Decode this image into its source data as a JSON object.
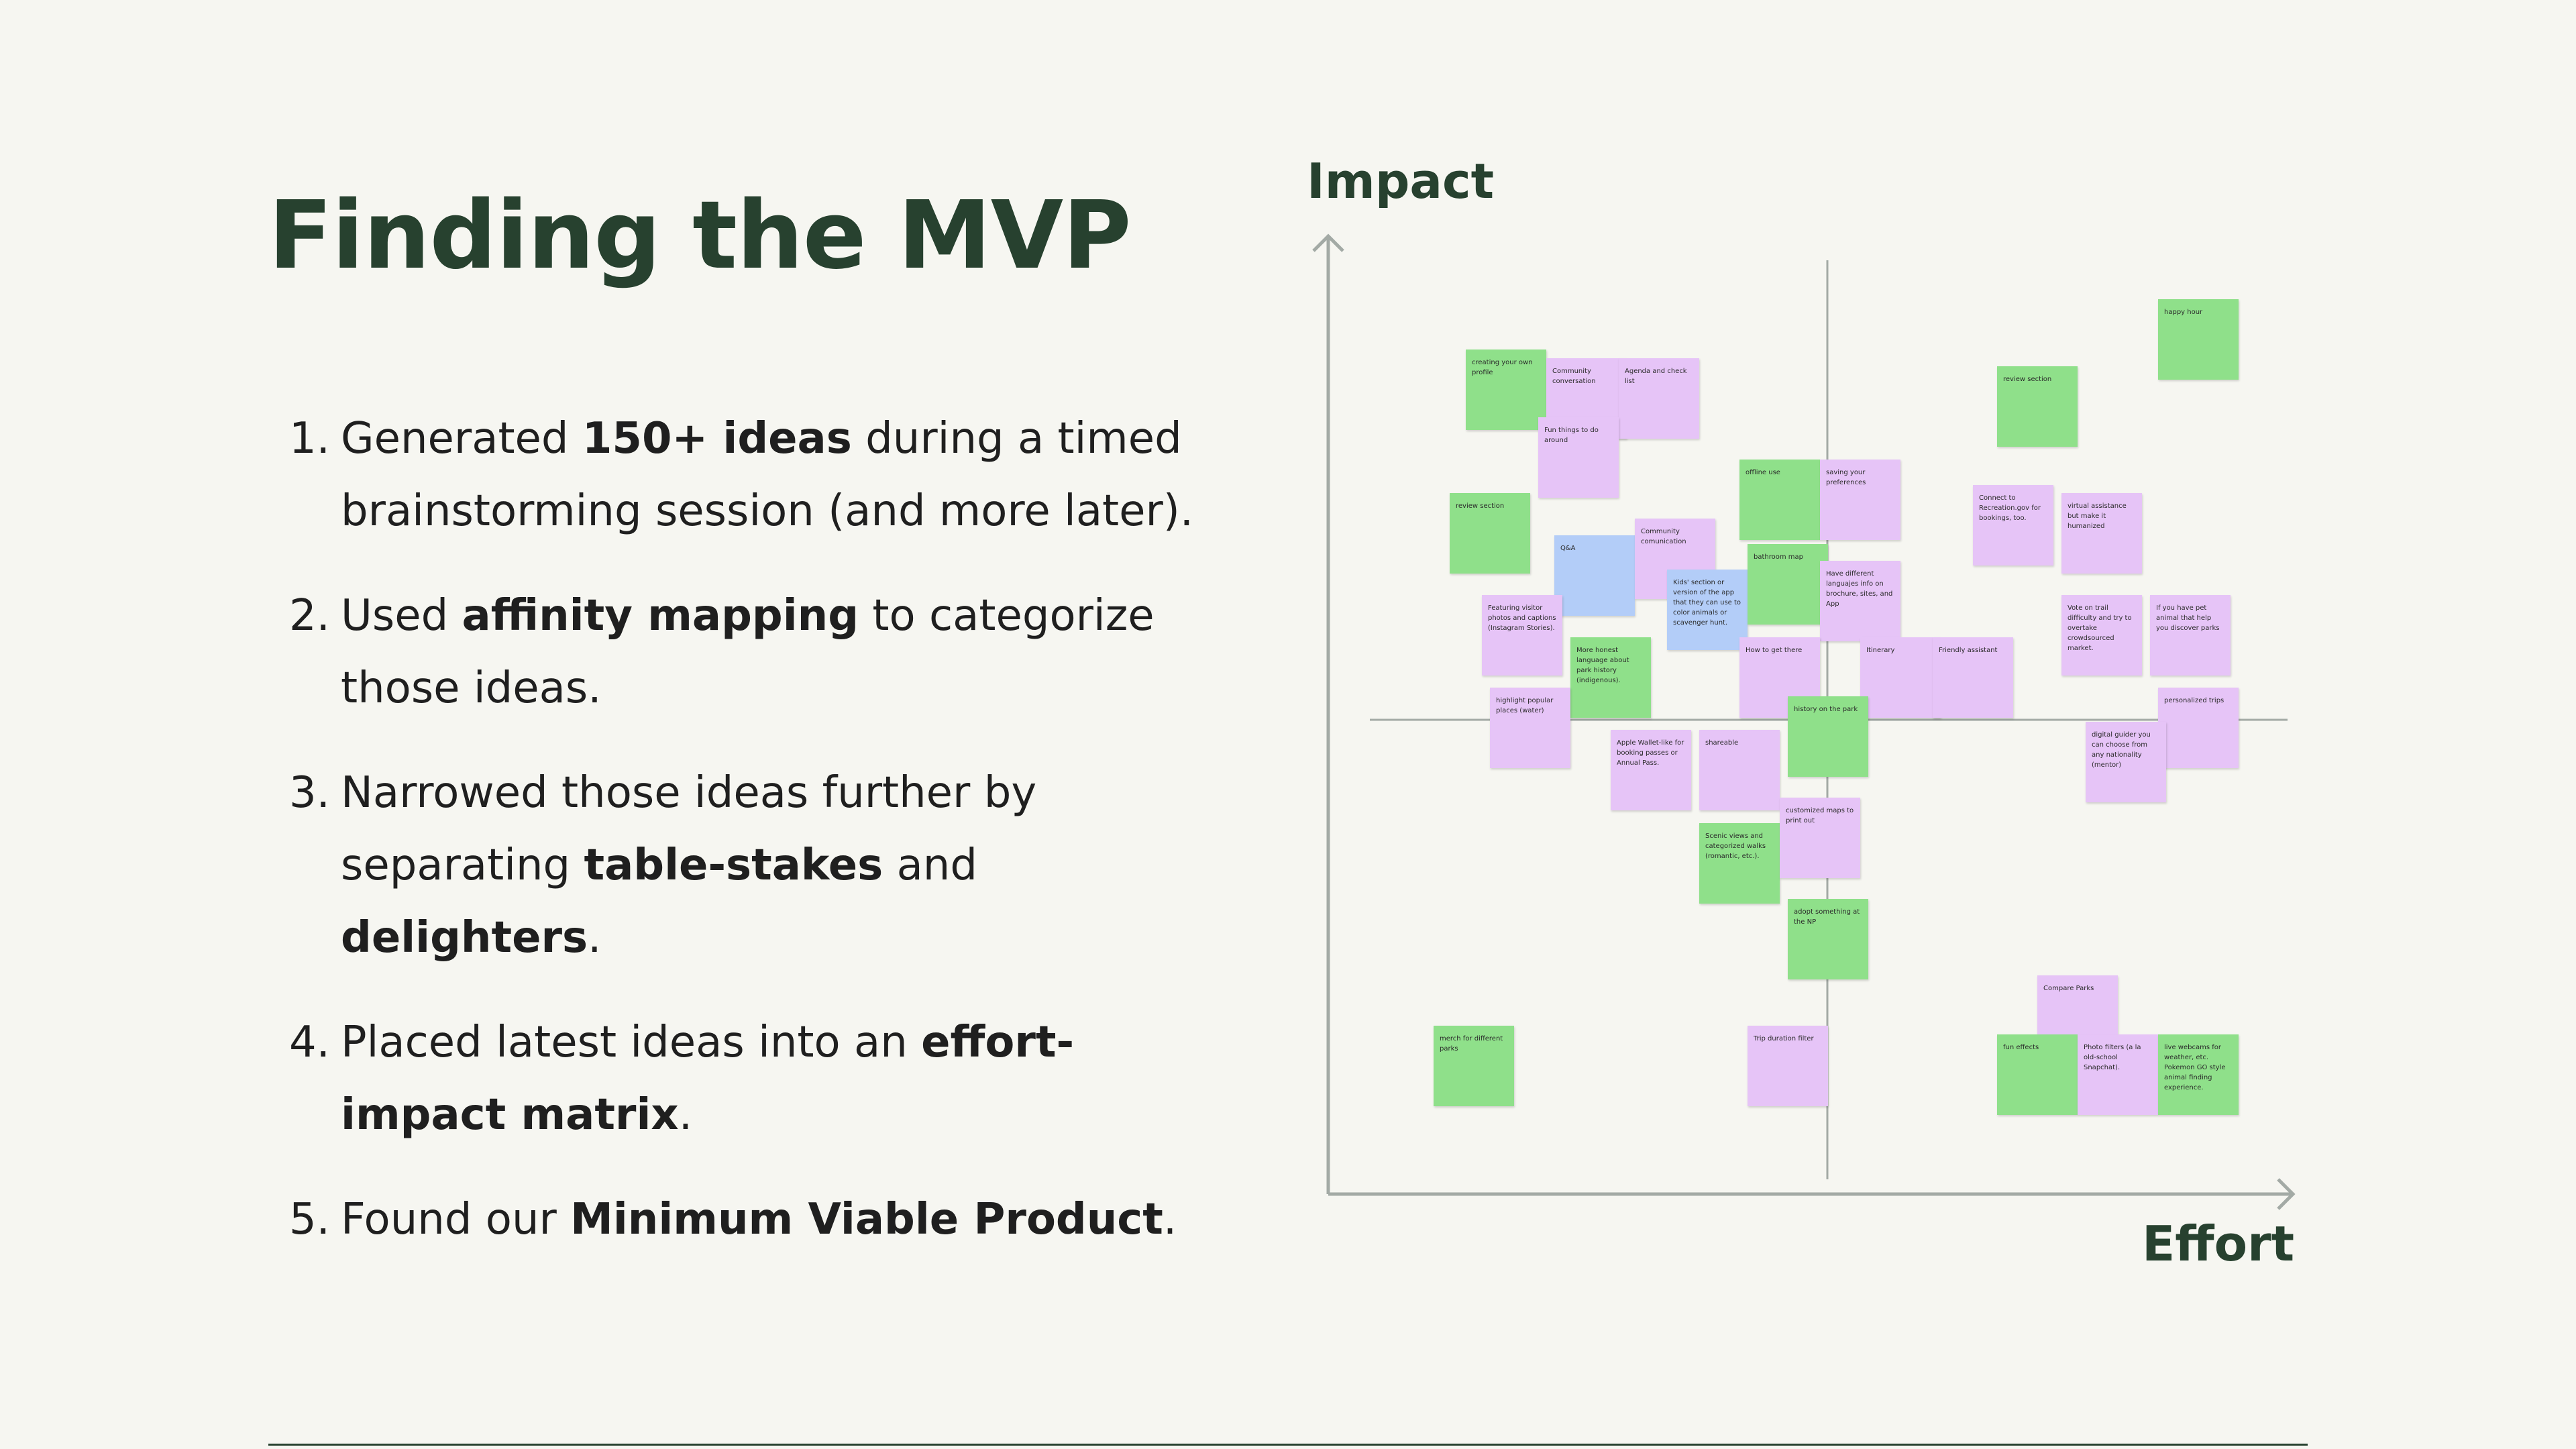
{
  "slide": {
    "title": "Finding the MVP",
    "points": [
      {
        "num": "1.",
        "parts": [
          {
            "t": "Generated "
          },
          {
            "t": "150+ ideas",
            "b": true
          },
          {
            "t": " during a timed brainstorming session (and more later)."
          }
        ]
      },
      {
        "num": "2.",
        "parts": [
          {
            "t": "Used "
          },
          {
            "t": "affinity mapping",
            "b": true
          },
          {
            "t": " to categorize those ideas."
          }
        ]
      },
      {
        "num": "3.",
        "parts": [
          {
            "t": "Narrowed those ideas further by separating "
          },
          {
            "t": "table-stakes",
            "b": true
          },
          {
            "t": " and "
          },
          {
            "t": "delighters",
            "b": true
          },
          {
            "t": "."
          }
        ]
      },
      {
        "num": "4.",
        "parts": [
          {
            "t": "Placed latest ideas into an "
          },
          {
            "t": "effort-impact matrix",
            "b": true
          },
          {
            "t": "."
          }
        ]
      },
      {
        "num": "5.",
        "parts": [
          {
            "t": "Found our "
          },
          {
            "t": "Minimum Viable Product",
            "b": true
          },
          {
            "t": "."
          }
        ]
      }
    ]
  },
  "matrix": {
    "y_axis_label": "Impact",
    "x_axis_label": "Effort",
    "colors": {
      "green": "#8fe08a",
      "pink": "#e6c4f7",
      "blue": "#b3cdf8",
      "axis": "#a3aaa5",
      "heading": "#27412f"
    },
    "notes": [
      {
        "text": "creating your own profile",
        "color": "green",
        "effort": 0.1,
        "impact": 0.88
      },
      {
        "text": "Community conversation",
        "color": "pink",
        "effort": 0.2,
        "impact": 0.87
      },
      {
        "text": "Agenda and check list",
        "color": "pink",
        "effort": 0.29,
        "impact": 0.87
      },
      {
        "text": "Fun things to do around",
        "color": "pink",
        "effort": 0.19,
        "impact": 0.8
      },
      {
        "text": "review section",
        "color": "green",
        "effort": 0.08,
        "impact": 0.71
      },
      {
        "text": "Q&A",
        "color": "blue",
        "effort": 0.21,
        "impact": 0.66
      },
      {
        "text": "Community comunication",
        "color": "pink",
        "effort": 0.31,
        "impact": 0.68
      },
      {
        "text": "offline use",
        "color": "green",
        "effort": 0.44,
        "impact": 0.75
      },
      {
        "text": "saving your preferences",
        "color": "pink",
        "effort": 0.54,
        "impact": 0.75
      },
      {
        "text": "Kids' section or version of the app that they can use to color animals or scavenger hunt.",
        "color": "blue",
        "effort": 0.35,
        "impact": 0.62
      },
      {
        "text": "bathroom map",
        "color": "green",
        "effort": 0.45,
        "impact": 0.65
      },
      {
        "text": "Have different languajes info on brochure, sites, and App",
        "color": "pink",
        "effort": 0.54,
        "impact": 0.63
      },
      {
        "text": "Featuring visitor photos and captions (Instagram Stories).",
        "color": "pink",
        "effort": 0.12,
        "impact": 0.59
      },
      {
        "text": "More honest language about park history (indigenous).",
        "color": "green",
        "effort": 0.23,
        "impact": 0.54
      },
      {
        "text": "How to get there",
        "color": "pink",
        "effort": 0.44,
        "impact": 0.54
      },
      {
        "text": "Itinerary",
        "color": "pink",
        "effort": 0.59,
        "impact": 0.54
      },
      {
        "text": "Friendly assistant",
        "color": "pink",
        "effort": 0.68,
        "impact": 0.54
      },
      {
        "text": "highlight popular places (water)",
        "color": "pink",
        "effort": 0.13,
        "impact": 0.48
      },
      {
        "text": "history on the park",
        "color": "green",
        "effort": 0.5,
        "impact": 0.47
      },
      {
        "text": "Apple Wallet-like for booking passes or Annual Pass.",
        "color": "pink",
        "effort": 0.28,
        "impact": 0.43
      },
      {
        "text": "shareable",
        "color": "pink",
        "effort": 0.39,
        "impact": 0.43
      },
      {
        "text": "Scenic views and categorized walks (romantic, etc.).",
        "color": "green",
        "effort": 0.39,
        "impact": 0.32
      },
      {
        "text": "customized maps to print out",
        "color": "pink",
        "effort": 0.49,
        "impact": 0.35
      },
      {
        "text": "adopt something at the NP",
        "color": "green",
        "effort": 0.5,
        "impact": 0.23
      },
      {
        "text": "happy hour",
        "color": "green",
        "effort": 0.96,
        "impact": 0.94
      },
      {
        "text": "review section",
        "color": "green",
        "effort": 0.76,
        "impact": 0.86
      },
      {
        "text": "Connect to Recreation.gov for bookings, too.",
        "color": "pink",
        "effort": 0.73,
        "impact": 0.72
      },
      {
        "text": "virtual assistance but make it humanized",
        "color": "pink",
        "effort": 0.84,
        "impact": 0.71
      },
      {
        "text": "Vote on trail difficulty and try to overtake crowdsourced market.",
        "color": "pink",
        "effort": 0.84,
        "impact": 0.59
      },
      {
        "text": "If you have pet animal that help you discover parks",
        "color": "pink",
        "effort": 0.95,
        "impact": 0.59
      },
      {
        "text": "personalized trips",
        "color": "pink",
        "effort": 0.96,
        "impact": 0.48
      },
      {
        "text": "digital guider you can choose from any nationality (mentor)",
        "color": "pink",
        "effort": 0.87,
        "impact": 0.44
      },
      {
        "text": "Compare Parks",
        "color": "pink",
        "effort": 0.81,
        "impact": 0.14
      },
      {
        "text": "merch for different parks",
        "color": "green",
        "effort": 0.06,
        "impact": 0.08
      },
      {
        "text": "Trip duration filter",
        "color": "pink",
        "effort": 0.45,
        "impact": 0.08
      },
      {
        "text": "fun effects",
        "color": "green",
        "effort": 0.76,
        "impact": 0.07
      },
      {
        "text": "Photo filters (a la old-school Snapchat).",
        "color": "pink",
        "effort": 0.86,
        "impact": 0.07
      },
      {
        "text": "live webcams for weather, etc.\nPokemon GO style animal finding experience.",
        "color": "green",
        "effort": 0.96,
        "impact": 0.07
      }
    ]
  }
}
